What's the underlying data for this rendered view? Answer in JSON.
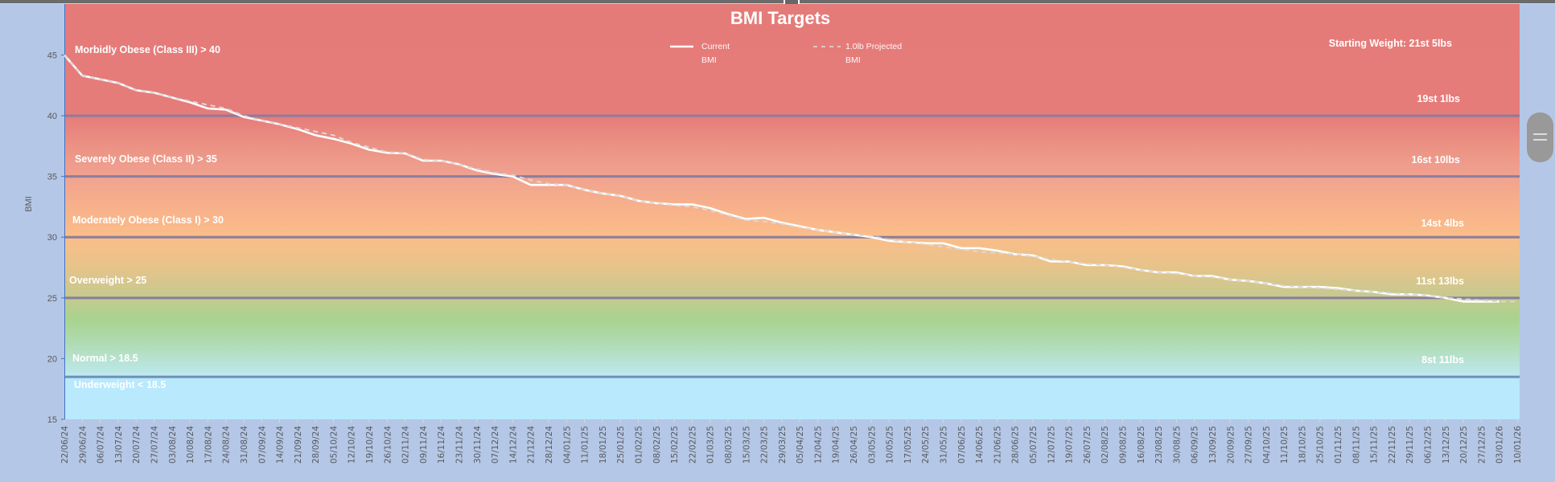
{
  "chart_data": {
    "type": "line",
    "title": "BMI Targets",
    "ylabel": "BMI",
    "ylim": [
      15,
      49.2
    ],
    "yticks": [
      15,
      20,
      25,
      30,
      35,
      40,
      45
    ],
    "grid": false,
    "legend": "top-center",
    "categories": [
      "22/06/24",
      "29/06/24",
      "06/07/24",
      "13/07/24",
      "20/07/24",
      "27/07/24",
      "03/08/24",
      "10/08/24",
      "17/08/24",
      "24/08/24",
      "31/08/24",
      "07/09/24",
      "14/09/24",
      "21/09/24",
      "28/09/24",
      "05/10/24",
      "12/10/24",
      "19/10/24",
      "26/10/24",
      "02/11/24",
      "09/11/24",
      "16/11/24",
      "23/11/24",
      "30/11/24",
      "07/12/24",
      "14/12/24",
      "21/12/24",
      "28/12/24",
      "04/01/25",
      "11/01/25",
      "18/01/25",
      "25/01/25",
      "01/02/25",
      "08/02/25",
      "15/02/25",
      "22/02/25",
      "01/03/25",
      "08/03/25",
      "15/03/25",
      "22/03/25",
      "29/03/25",
      "05/04/25",
      "12/04/25",
      "19/04/25",
      "26/04/25",
      "03/05/25",
      "10/05/25",
      "17/05/25",
      "24/05/25",
      "31/05/25",
      "07/06/25",
      "14/06/25",
      "21/06/25",
      "28/06/25",
      "05/07/25",
      "12/07/25",
      "19/07/25",
      "26/07/25",
      "02/08/25",
      "09/08/25",
      "16/08/25",
      "23/08/25",
      "30/08/25",
      "06/09/25",
      "13/09/25",
      "20/09/25",
      "27/09/25",
      "04/10/25",
      "11/10/25",
      "18/10/25",
      "25/10/25",
      "01/11/25",
      "08/11/25",
      "15/11/25",
      "22/11/25",
      "29/11/25",
      "06/12/25",
      "13/12/25",
      "20/12/25",
      "27/12/25",
      "03/01/26",
      "10/01/26"
    ],
    "series": [
      {
        "name": "Current BMI",
        "style": "solid",
        "color": "#ffffff",
        "values": [
          45.0,
          43.3,
          43.0,
          42.7,
          42.1,
          41.9,
          41.5,
          41.1,
          40.6,
          40.5,
          39.9,
          39.6,
          39.3,
          38.9,
          38.4,
          38.1,
          37.7,
          37.2,
          36.95,
          36.9,
          36.3,
          36.3,
          36.0,
          35.5,
          35.2,
          35.0,
          34.3,
          34.3,
          34.3,
          33.9,
          33.6,
          33.4,
          33.0,
          32.8,
          32.7,
          32.7,
          32.4,
          31.9,
          31.5,
          31.6,
          31.2,
          30.9,
          30.6,
          30.4,
          30.2,
          30.0,
          29.7,
          29.6,
          29.5,
          29.5,
          29.1,
          29.1,
          28.9,
          28.6,
          28.5,
          28.0,
          28.0,
          27.7,
          27.7,
          27.6,
          27.3,
          27.1,
          27.1,
          26.8,
          26.8,
          26.5,
          26.4,
          26.2,
          25.9,
          25.9,
          25.9,
          25.8,
          25.6,
          25.5,
          25.3,
          25.3,
          25.2,
          25.0,
          24.7,
          24.7,
          24.7,
          null
        ]
      },
      {
        "name": "1.0lb Projected BMI",
        "style": "dashed",
        "color": "#d9d9d9",
        "values": [
          45.0,
          43.3,
          43.0,
          42.7,
          42.1,
          41.9,
          41.5,
          41.2,
          40.9,
          40.6,
          40.0,
          39.6,
          39.3,
          39.0,
          38.7,
          38.4,
          37.8,
          37.4,
          37.0,
          36.9,
          36.4,
          36.3,
          36.0,
          35.6,
          35.3,
          35.1,
          34.7,
          34.4,
          34.3,
          33.9,
          33.6,
          33.4,
          33.0,
          32.8,
          32.6,
          32.5,
          32.2,
          31.8,
          31.4,
          31.3,
          31.1,
          30.8,
          30.6,
          30.4,
          30.2,
          30.1,
          29.8,
          29.6,
          29.4,
          29.2,
          29.0,
          28.8,
          28.7,
          28.6,
          28.4,
          28.2,
          28.0,
          27.8,
          27.7,
          27.5,
          27.3,
          27.1,
          27.0,
          26.8,
          26.7,
          26.5,
          26.4,
          26.2,
          26.0,
          25.9,
          25.8,
          25.7,
          25.6,
          25.5,
          25.4,
          25.3,
          25.2,
          25.0,
          24.9,
          24.8,
          24.7,
          24.7
        ]
      }
    ],
    "thresholds": [
      {
        "value": 40,
        "label": "Morbidly Obese (Class III) > 40",
        "weight": "19st 1lbs"
      },
      {
        "value": 35,
        "label": "Severely Obese (Class II) > 35",
        "weight": "16st 10lbs"
      },
      {
        "value": 30,
        "label": "Moderately Obese (Class I) > 30",
        "weight": "14st 4lbs"
      },
      {
        "value": 25,
        "label": "Overweight > 25",
        "weight": "11st 13lbs"
      },
      {
        "value": 18.5,
        "label": "Normal > 18.5",
        "weight": "8st 11lbs"
      }
    ],
    "underweight_label": "Underweight < 18.5",
    "starting_weight": "Starting Weight: 21st 5lbs",
    "legend_entries": [
      {
        "line1": "Current",
        "line2": "BMI"
      },
      {
        "line1": "1.0lb Projected",
        "line2": "BMI"
      }
    ],
    "colors": {
      "obese": "#e57c7a",
      "overweight": "#fbbd89",
      "normal": "#a9d38f",
      "underweight": "#b8e9fd",
      "threshold_line": "#8a7d9c",
      "page_bg": "#b4c7e7"
    }
  }
}
